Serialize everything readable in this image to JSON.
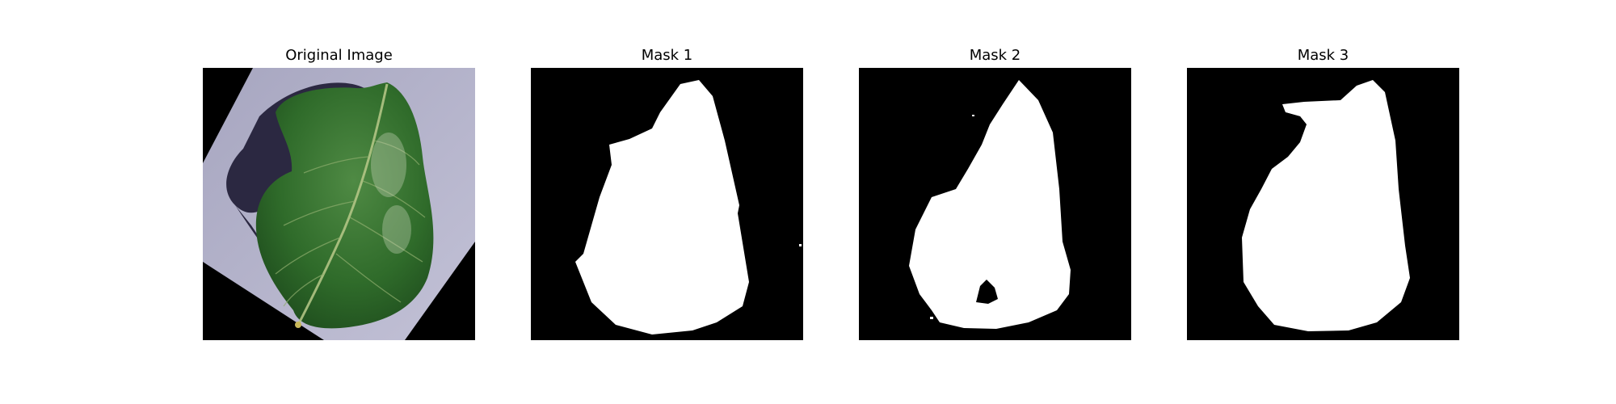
{
  "figure": {
    "panels": [
      {
        "title": "Original Image"
      },
      {
        "title": "Mask 1"
      },
      {
        "title": "Mask 2"
      },
      {
        "title": "Mask 3"
      }
    ]
  },
  "colors": {
    "background": "#000000",
    "mask": "#ffffff",
    "paper": "#b3b2c9",
    "shadow": "#24213a",
    "leaf": "#2f6b2a",
    "vein": "#b9c98a"
  }
}
